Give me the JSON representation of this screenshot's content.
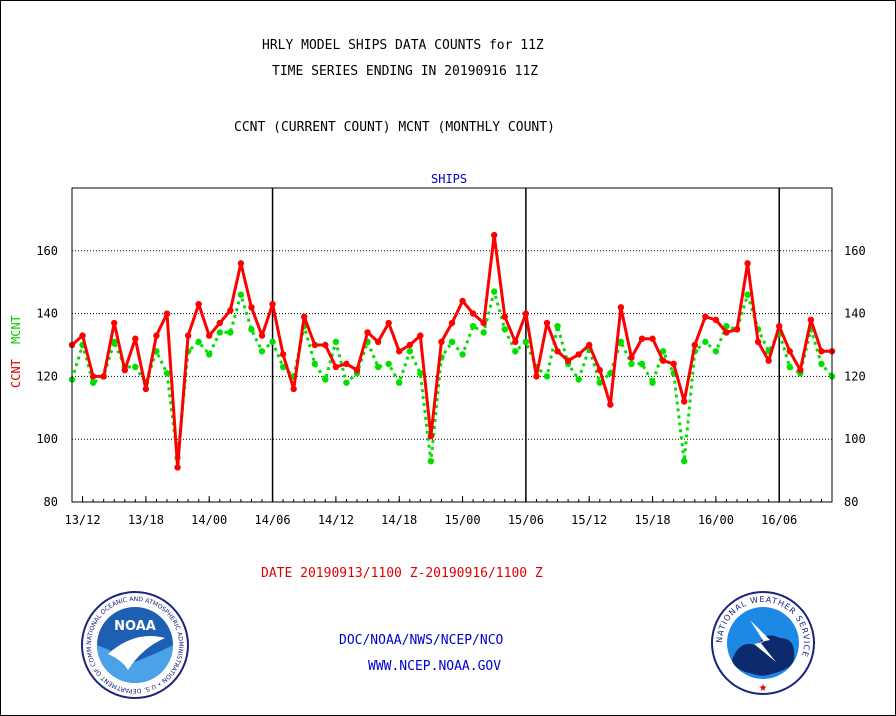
{
  "header": {
    "title_line1": "HRLY MODEL SHIPS DATA COUNTS for 11Z",
    "title_line2": "TIME SERIES ENDING IN 20190916 11Z",
    "subtitle": "CCNT (CURRENT COUNT) MCNT (MONTHLY COUNT)"
  },
  "footer": {
    "date_range": "DATE 20190913/1100 Z-20190916/1100 Z",
    "org": "DOC/NOAA/NWS/NCEP/NCO",
    "website": "WWW.NCEP.NOAA.GOV"
  },
  "logos": {
    "noaa_text": "NOAA",
    "noaa_ring": "NATIONAL OCEANIC AND ATMOSPHERIC ADMINISTRATION • U.S. DEPARTMENT OF COMMERCE •",
    "nws_ring": "NATIONAL WEATHER SERVICE"
  },
  "colors": {
    "ccnt": "#ff0000",
    "mcnt": "#00e000",
    "text_blue": "#0000cc",
    "text_red": "#e00000"
  },
  "chart_data": {
    "type": "line",
    "title": "SHIPS",
    "ylabel_left_1": "CCNT",
    "ylabel_left_2": "MCNT",
    "ylim": [
      80,
      180
    ],
    "yticks": [
      80,
      100,
      120,
      140,
      160
    ],
    "x_tick_labels": [
      "13/12",
      "13/18",
      "14/00",
      "14/06",
      "14/12",
      "14/18",
      "15/00",
      "15/06",
      "15/12",
      "15/18",
      "16/00",
      "16/06"
    ],
    "x_tick_hours": [
      1,
      7,
      13,
      19,
      25,
      31,
      37,
      43,
      49,
      55,
      61,
      67
    ],
    "day_boundary_hours": [
      19,
      43,
      67
    ],
    "grid": true,
    "x_start": "13/11",
    "x_step_hours": 1,
    "series": [
      {
        "name": "CCNT",
        "values": [
          130,
          133,
          120,
          120,
          137,
          122,
          132,
          116,
          133,
          140,
          91,
          133,
          143,
          133,
          137,
          141,
          156,
          142,
          133,
          143,
          127,
          116,
          139,
          130,
          130,
          123,
          124,
          122,
          134,
          131,
          137,
          128,
          130,
          133,
          101,
          131,
          137,
          144,
          140,
          137,
          165,
          139,
          131,
          140,
          120,
          137,
          128,
          125,
          127,
          130,
          122,
          111,
          142,
          126,
          132,
          132,
          125,
          124,
          112,
          130,
          139,
          138,
          134,
          135,
          156,
          131,
          125,
          136,
          128,
          122,
          138,
          128,
          128
        ]
      },
      {
        "name": "MCNT",
        "values": [
          119,
          130,
          118,
          120,
          131,
          123,
          123,
          118,
          128,
          121,
          94,
          128,
          131,
          127,
          134,
          134,
          146,
          135,
          128,
          131,
          123,
          120,
          136,
          124,
          119,
          131,
          118,
          121,
          131,
          123,
          124,
          118,
          128,
          121,
          93,
          126,
          131,
          127,
          136,
          134,
          147,
          135,
          128,
          131,
          123,
          120,
          136,
          124,
          119,
          129,
          118,
          121,
          131,
          124,
          124,
          118,
          128,
          121,
          93,
          128,
          131,
          128,
          136,
          135,
          146,
          135,
          128,
          134,
          123,
          121,
          135,
          124,
          120
        ]
      }
    ]
  }
}
